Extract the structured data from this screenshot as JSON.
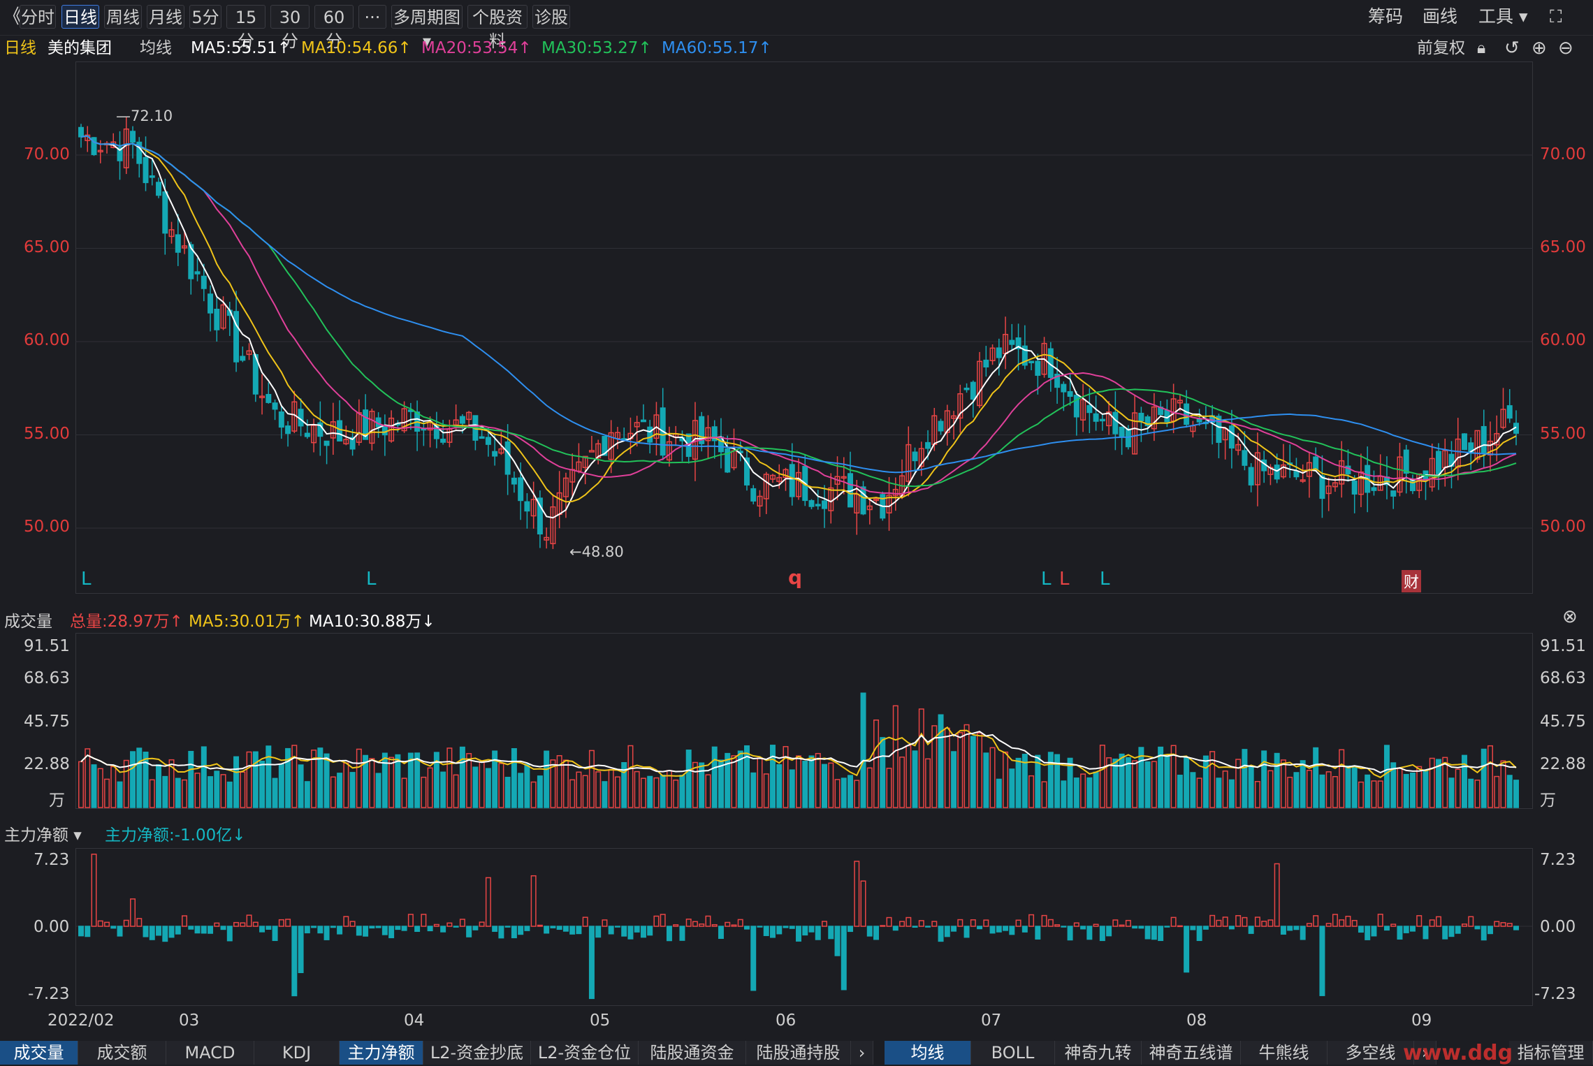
{
  "toolbar": {
    "back_glyph": "《",
    "periods": [
      "分时",
      "日线",
      "周线",
      "月线",
      "5分",
      "15分",
      "30分",
      "60分",
      "···",
      "多周期图 ▾",
      "个股资料",
      "诊股"
    ],
    "active_period": "日线",
    "right": [
      "筹码",
      "画线",
      "工具 ▾"
    ],
    "fullscreen_glyph": "⛶"
  },
  "ma_header": {
    "period": "日线",
    "stock": "美的集团",
    "ma_label": "均线",
    "ma5": "MA5:55.51↑",
    "ma10": "MA10:54.66↑",
    "ma20": "MA20:53.54↑",
    "ma30": "MA30:53.27↑",
    "ma60": "MA60:55.17↑",
    "adjust": "前复权"
  },
  "colors": {
    "up": "#e84545",
    "down": "#14a8b4",
    "ma5": "#ffffff",
    "ma10": "#f0c419",
    "ma20": "#e0409a",
    "ma30": "#22c25a",
    "ma60": "#2e8ff0",
    "axis_red": "#e23b3b"
  },
  "price_axis": [
    "70.00",
    "65.00",
    "60.00",
    "55.00",
    "50.00"
  ],
  "price_annotations": {
    "high": "72.10",
    "low": "←48.80"
  },
  "signal_marks": [
    "L",
    "L",
    "q",
    "L",
    "L",
    "L",
    "财"
  ],
  "volume_panel": {
    "label": "成交量",
    "total": "总量:28.97万↑",
    "ma5": "MA5:30.01万↑",
    "ma10": "MA10:30.88万↓",
    "axis": [
      "91.51",
      "68.63",
      "45.75",
      "22.88",
      "万"
    ]
  },
  "capital_panel": {
    "label": "主力净额 ▾",
    "value": "主力净额:-1.00亿↓",
    "axis": [
      "7.23",
      "0.00",
      "-7.23"
    ]
  },
  "date_axis": [
    "2022/02",
    "03",
    "04",
    "05",
    "06",
    "07",
    "08",
    "09"
  ],
  "bottom_tabs_left": [
    "成交量",
    "成交额",
    "MACD",
    "KDJ",
    "主力净额",
    "L2-资金抄底",
    "L2-资金仓位",
    "陆股通资金",
    "陆股通持股"
  ],
  "bottom_tabs_right": [
    "均线",
    "BOLL",
    "神奇九转",
    "神奇五线谱",
    "牛熊线",
    "多空线",
    "指标管理"
  ],
  "watermark": "www.ddg"
}
